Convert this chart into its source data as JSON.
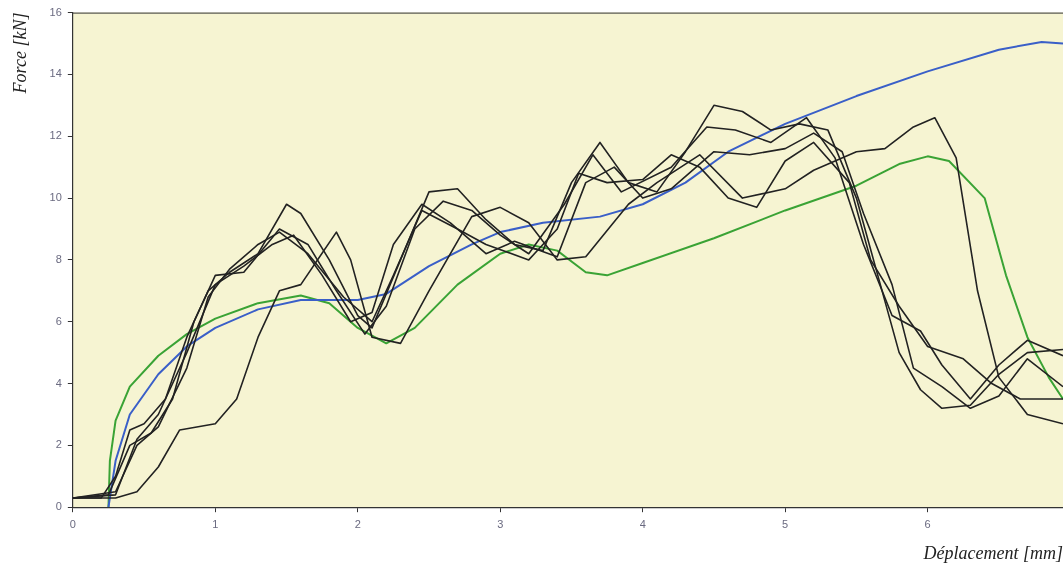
{
  "chart_data": {
    "type": "line",
    "xlabel": "Déplacement [mm]",
    "ylabel": "Force [kN]",
    "xlim": [
      0,
      6.95
    ],
    "xticks": [
      0,
      1,
      2,
      3,
      4,
      5,
      6
    ],
    "ylim": [
      0,
      16
    ],
    "yticks": [
      0,
      2,
      4,
      6,
      8,
      10,
      12,
      14,
      16
    ],
    "grid": false,
    "legend": false,
    "marker": "none",
    "line_style": "solid",
    "series": [
      {
        "color": "#222222",
        "x": [
          0,
          0.2,
          0.3,
          0.4,
          0.5,
          0.65,
          0.8,
          0.95,
          1.1,
          1.3,
          1.5,
          1.6,
          1.8,
          2,
          2.1,
          2.3,
          2.5,
          2.7,
          2.9,
          3.1,
          3.3,
          3.5,
          3.7,
          3.9,
          4.1,
          4.3,
          4.5,
          4.7,
          4.9,
          5.1,
          5.3,
          5.5,
          5.65,
          5.8,
          5.95,
          6.1,
          6.3,
          6.5,
          6.7,
          6.95
        ],
        "values": [
          0.3,
          0.3,
          1,
          2.5,
          2.7,
          3.5,
          5.5,
          7,
          7.6,
          8.2,
          9.8,
          9.5,
          8,
          6.2,
          5.8,
          8,
          10.2,
          10.3,
          9.3,
          8.5,
          8.3,
          10.5,
          11.8,
          10.5,
          10.2,
          11.5,
          13,
          12.8,
          12.2,
          12.4,
          12.2,
          10,
          7.5,
          5,
          3.8,
          3.2,
          3.3,
          4.3,
          5,
          5.1
        ]
      },
      {
        "color": "#222222",
        "x": [
          0,
          0.25,
          0.4,
          0.55,
          0.7,
          0.85,
          1,
          1.2,
          1.45,
          1.65,
          1.85,
          2.05,
          2.2,
          2.4,
          2.6,
          2.8,
          3,
          3.2,
          3.45,
          3.65,
          3.85,
          4.2,
          4.45,
          4.65,
          4.9,
          5.15,
          5.35,
          5.55,
          5.75,
          5.95,
          6.1,
          6.3,
          6.5,
          6.7,
          6.95
        ],
        "values": [
          0.3,
          0.4,
          2,
          2.4,
          3.5,
          6,
          7.5,
          7.6,
          9,
          8.5,
          7,
          5.6,
          6.5,
          9,
          9.9,
          9.6,
          8.8,
          8.2,
          9.8,
          11.4,
          10.2,
          11,
          12.3,
          12.2,
          11.8,
          12.6,
          11.3,
          8.5,
          6.2,
          5.7,
          4.6,
          3.5,
          4.6,
          5.4,
          4.9
        ]
      },
      {
        "color": "#222222",
        "x": [
          0,
          0.3,
          0.45,
          0.6,
          0.75,
          1,
          1.15,
          1.3,
          1.45,
          1.6,
          1.85,
          1.95,
          2.1,
          2.3,
          2.5,
          2.8,
          3,
          3.2,
          3.4,
          3.6,
          3.9,
          4.1,
          4.4,
          4.7,
          5,
          5.2,
          5.5,
          5.7,
          5.9,
          6.05,
          6.2,
          6.35,
          6.5,
          6.7,
          6.95
        ],
        "values": [
          0.3,
          0.3,
          0.5,
          1.3,
          2.5,
          2.7,
          3.5,
          5.5,
          7,
          7.2,
          8.9,
          8,
          5.5,
          5.3,
          7,
          9.4,
          9.7,
          9.2,
          8,
          8.1,
          9.8,
          10.5,
          11.4,
          10,
          10.3,
          10.9,
          11.5,
          11.6,
          12.3,
          12.6,
          11.3,
          7,
          4.2,
          3,
          2.7
        ]
      },
      {
        "color": "#222222",
        "x": [
          0,
          0.3,
          0.45,
          0.6,
          0.8,
          0.95,
          1.1,
          1.3,
          1.45,
          1.65,
          1.9,
          2.1,
          2.25,
          2.45,
          2.7,
          2.9,
          3.2,
          3.4,
          3.55,
          3.75,
          4,
          4.2,
          4.4,
          4.6,
          4.8,
          5,
          5.2,
          5.45,
          5.6,
          5.8,
          6,
          6.25,
          6.45,
          6.65,
          6.95
        ],
        "values": [
          0.3,
          0.5,
          2,
          2.6,
          4.5,
          6.8,
          7.7,
          8.5,
          8.9,
          8.2,
          6.8,
          6,
          7.5,
          9.6,
          9,
          8.5,
          8,
          9,
          10.8,
          10.5,
          10.6,
          11.4,
          11,
          10,
          9.7,
          11.2,
          11.8,
          10.5,
          8,
          6.5,
          5.2,
          4.8,
          4,
          3.5,
          3.5
        ]
      },
      {
        "color": "#222222",
        "x": [
          0,
          0.3,
          0.45,
          0.6,
          0.8,
          1,
          1.2,
          1.4,
          1.55,
          1.75,
          1.95,
          2.1,
          2.25,
          2.45,
          2.65,
          2.9,
          3.1,
          3.4,
          3.6,
          3.8,
          4,
          4.2,
          4.5,
          4.75,
          5,
          5.2,
          5.4,
          5.55,
          5.75,
          5.9,
          6.1,
          6.3,
          6.5,
          6.7,
          6.95
        ],
        "values": [
          0.3,
          0.4,
          2.2,
          3,
          5,
          7.2,
          7.8,
          8.5,
          8.8,
          7.5,
          6,
          6.3,
          8.5,
          9.8,
          9.2,
          8.2,
          8.6,
          8.1,
          10.5,
          11,
          10,
          10.3,
          11.5,
          11.4,
          11.6,
          12.1,
          11.5,
          9.5,
          7.2,
          4.5,
          3.9,
          3.2,
          3.6,
          4.8,
          3.9
        ]
      },
      {
        "color": "#3a5fc8",
        "x": [
          0.25,
          0.3,
          0.4,
          0.6,
          0.8,
          1,
          1.3,
          1.6,
          2,
          2.2,
          2.5,
          2.8,
          3,
          3.3,
          3.7,
          4,
          4.3,
          4.6,
          5,
          5.5,
          6,
          6.5,
          6.8,
          6.95
        ],
        "values": [
          0,
          1.5,
          3,
          4.3,
          5.2,
          5.8,
          6.4,
          6.7,
          6.7,
          6.9,
          7.8,
          8.5,
          8.9,
          9.2,
          9.4,
          9.8,
          10.5,
          11.5,
          12.4,
          13.3,
          14.1,
          14.8,
          15.05,
          15
        ]
      },
      {
        "color": "#3aa335",
        "x": [
          0.25,
          0.26,
          0.3,
          0.4,
          0.6,
          0.8,
          1,
          1.3,
          1.6,
          1.8,
          2,
          2.2,
          2.4,
          2.7,
          3,
          3.2,
          3.4,
          3.6,
          3.75,
          4,
          4.5,
          5,
          5.5,
          5.8,
          6,
          6.15,
          6.4,
          6.55,
          6.7,
          6.85,
          6.95
        ],
        "values": [
          0,
          1.5,
          2.8,
          3.9,
          4.9,
          5.6,
          6.1,
          6.6,
          6.85,
          6.6,
          5.8,
          5.3,
          5.8,
          7.2,
          8.2,
          8.5,
          8.3,
          7.6,
          7.5,
          7.9,
          8.7,
          9.6,
          10.4,
          11.1,
          11.35,
          11.2,
          10,
          7.5,
          5.5,
          4.2,
          3.5
        ]
      }
    ]
  }
}
